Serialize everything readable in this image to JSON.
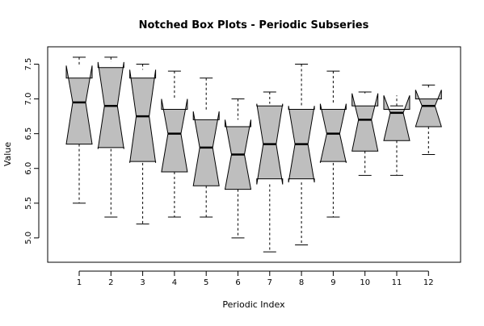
{
  "chart_data": {
    "type": "notched-boxplot",
    "title": "Notched Box Plots - Periodic Subseries",
    "xlabel": "Periodic Index",
    "ylabel": "Value",
    "ylim": [
      4.65,
      7.75
    ],
    "yticks": [
      5.0,
      5.5,
      6.0,
      6.5,
      7.0,
      7.5
    ],
    "ytick_labels": [
      "5.0",
      "5.5",
      "6.0",
      "6.5",
      "7.0",
      "7.5"
    ],
    "categories": [
      "1",
      "2",
      "3",
      "4",
      "5",
      "6",
      "7",
      "8",
      "9",
      "10",
      "11",
      "12"
    ],
    "box_fill": "#bebebe",
    "line_color": "#000000",
    "boxes": [
      {
        "whisker_low": 5.5,
        "q1": 6.35,
        "median": 6.95,
        "q3": 7.3,
        "whisker_high": 7.6,
        "notch_low": 6.35,
        "notch_high": 7.48
      },
      {
        "whisker_low": 5.3,
        "q1": 6.3,
        "median": 6.9,
        "q3": 7.45,
        "whisker_high": 7.6,
        "notch_low": 6.28,
        "notch_high": 7.53
      },
      {
        "whisker_low": 5.2,
        "q1": 6.1,
        "median": 6.75,
        "q3": 7.3,
        "whisker_high": 7.5,
        "notch_low": 6.08,
        "notch_high": 7.42
      },
      {
        "whisker_low": 5.3,
        "q1": 5.95,
        "median": 6.5,
        "q3": 6.85,
        "whisker_high": 7.4,
        "notch_low": 5.95,
        "notch_high": 7.0
      },
      {
        "whisker_low": 5.3,
        "q1": 5.75,
        "median": 6.3,
        "q3": 6.7,
        "whisker_high": 7.3,
        "notch_low": 5.75,
        "notch_high": 6.82
      },
      {
        "whisker_low": 5.0,
        "q1": 5.7,
        "median": 6.2,
        "q3": 6.6,
        "whisker_high": 7.0,
        "notch_low": 5.7,
        "notch_high": 6.7
      },
      {
        "whisker_low": 4.8,
        "q1": 5.85,
        "median": 6.35,
        "q3": 6.9,
        "whisker_high": 7.1,
        "notch_low": 5.77,
        "notch_high": 6.93
      },
      {
        "whisker_low": 4.9,
        "q1": 5.85,
        "median": 6.35,
        "q3": 6.85,
        "whisker_high": 7.5,
        "notch_low": 5.8,
        "notch_high": 6.9
      },
      {
        "whisker_low": 5.3,
        "q1": 6.1,
        "median": 6.5,
        "q3": 6.85,
        "whisker_high": 7.4,
        "notch_low": 6.08,
        "notch_high": 6.93
      },
      {
        "whisker_low": 5.9,
        "q1": 6.25,
        "median": 6.7,
        "q3": 6.9,
        "whisker_high": 7.1,
        "notch_low": 6.25,
        "notch_high": 7.08
      },
      {
        "whisker_low": 5.9,
        "q1": 6.4,
        "median": 6.8,
        "q3": 6.85,
        "whisker_high": 6.9,
        "notch_low": 6.4,
        "notch_high": 7.05
      },
      {
        "whisker_low": 6.2,
        "q1": 6.6,
        "median": 6.9,
        "q3": 7.0,
        "whisker_high": 7.2,
        "notch_low": 6.6,
        "notch_high": 7.13
      }
    ]
  }
}
